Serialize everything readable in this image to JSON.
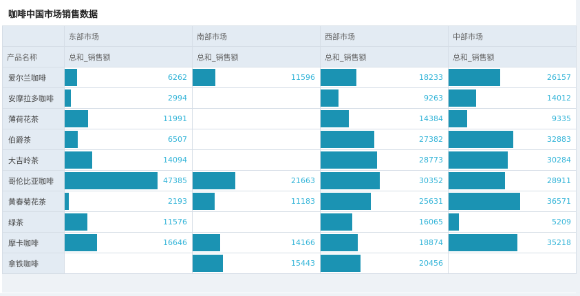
{
  "title": "咖啡中国市场销售数据",
  "header": {
    "row_label": "产品名称",
    "measure_label": "总和_销售额"
  },
  "chart_data": {
    "type": "table",
    "title": "咖啡中国市场销售数据",
    "markets": [
      "东部市场",
      "南部市场",
      "西部市场",
      "中部市场"
    ],
    "measure": "总和_销售额",
    "bar_max": 47385,
    "products": [
      {
        "name": "爱尔兰咖啡",
        "values": [
          6262,
          11596,
          18233,
          26157
        ]
      },
      {
        "name": "安摩拉多咖啡",
        "values": [
          2994,
          null,
          9263,
          14012
        ]
      },
      {
        "name": "薄荷花茶",
        "values": [
          11991,
          null,
          14384,
          9335
        ]
      },
      {
        "name": "伯爵茶",
        "values": [
          6507,
          null,
          27382,
          32883
        ]
      },
      {
        "name": "大吉岭茶",
        "values": [
          14094,
          null,
          28773,
          30284
        ]
      },
      {
        "name": "哥伦比亚咖啡",
        "values": [
          47385,
          21663,
          30352,
          28911
        ]
      },
      {
        "name": "黄春菊花茶",
        "values": [
          2193,
          11183,
          25631,
          36571
        ]
      },
      {
        "name": "绿茶",
        "values": [
          11576,
          null,
          16065,
          5209
        ]
      },
      {
        "name": "摩卡咖啡",
        "values": [
          16646,
          14166,
          18874,
          35218
        ]
      },
      {
        "name": "拿铁咖啡",
        "values": [
          null,
          15443,
          20456,
          null
        ]
      }
    ]
  },
  "colors": {
    "bar": "#1b93b3",
    "value_text": "#33b4d8",
    "header_bg": "#e3ebf3"
  }
}
